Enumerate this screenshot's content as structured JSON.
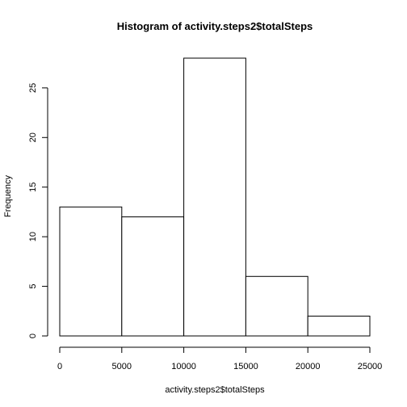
{
  "chart_data": {
    "type": "bar",
    "title": "Histogram of activity.steps2$totalSteps",
    "xlabel": "activity.steps2$totalSteps",
    "ylabel": "Frequency",
    "bins": [
      {
        "start": 0,
        "end": 5000,
        "count": 13
      },
      {
        "start": 5000,
        "end": 10000,
        "count": 12
      },
      {
        "start": 10000,
        "end": 15000,
        "count": 28
      },
      {
        "start": 15000,
        "end": 20000,
        "count": 6
      },
      {
        "start": 20000,
        "end": 25000,
        "count": 2
      }
    ],
    "xlim": [
      0,
      25000
    ],
    "ylim": [
      0,
      28
    ],
    "x_ticks": [
      "0",
      "5000",
      "10000",
      "15000",
      "20000",
      "25000"
    ],
    "y_ticks": [
      "0",
      "5",
      "10",
      "15",
      "20",
      "25"
    ],
    "grid": false,
    "bar_fill": "#ffffff",
    "bar_stroke": "#000000"
  }
}
